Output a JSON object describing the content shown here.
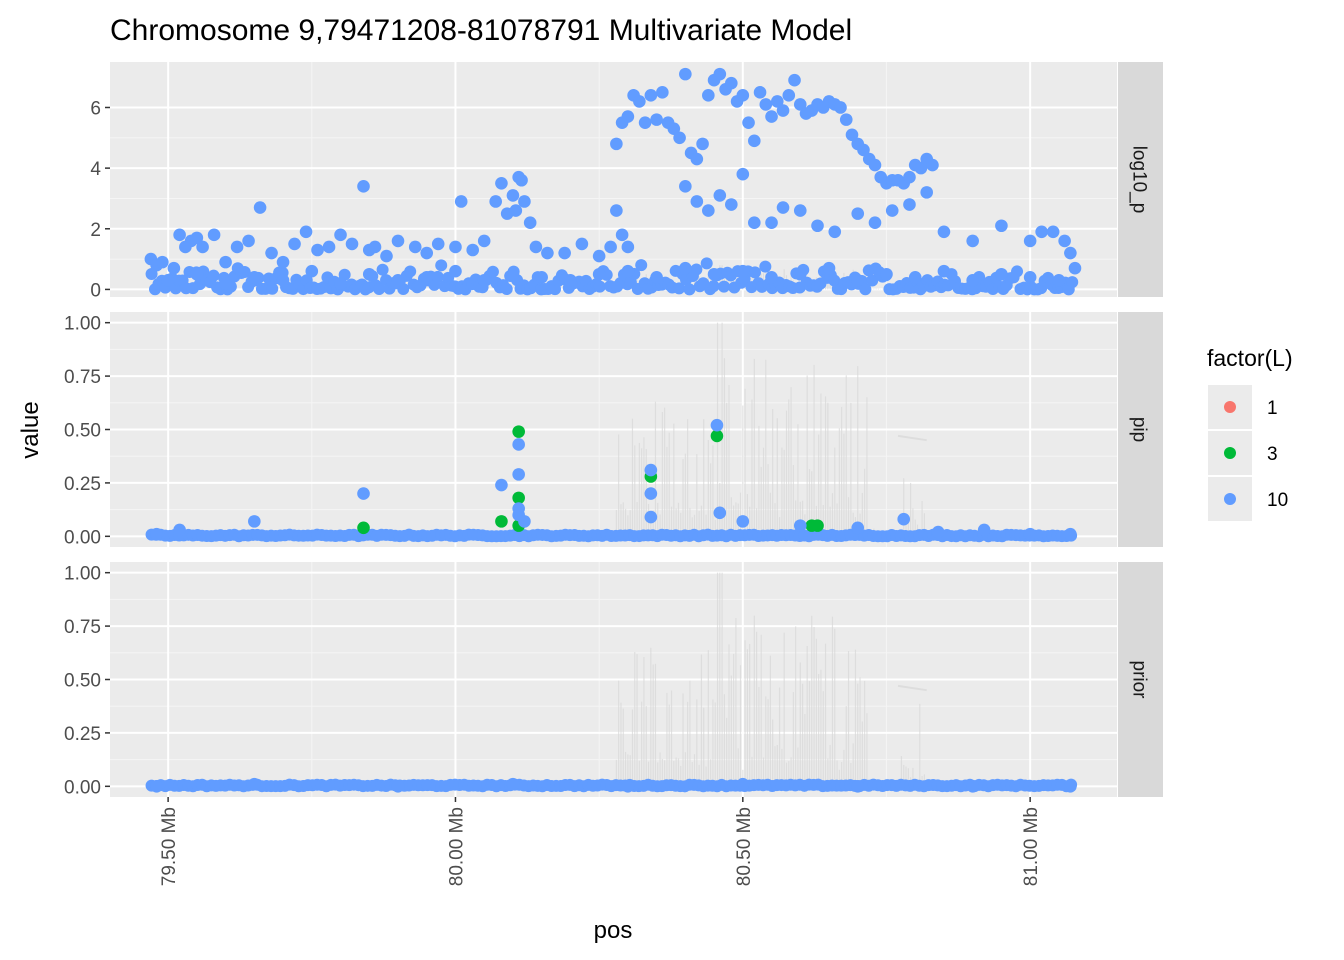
{
  "chart_data": {
    "type": "scatter",
    "title": "Chromosome 9,79471208-81078791 Multivariate Model",
    "xlabel": "pos",
    "ylabel": "value",
    "x_unit": "Mb",
    "x_range": [
      79.471208,
      81.078791
    ],
    "x_ticks": [
      "79.50 Mb",
      "80.00 Mb",
      "80.50 Mb",
      "81.00 Mb"
    ],
    "x_tick_values": [
      79.5,
      80.0,
      80.5,
      81.0
    ],
    "legend": {
      "title": "factor(L)",
      "placement": "right",
      "entries": [
        {
          "label": "1",
          "color": "#F8766D"
        },
        {
          "label": "3",
          "color": "#00BA38"
        },
        {
          "label": "10",
          "color": "#619CFF"
        }
      ]
    },
    "background_line_color": "#d9d9d9",
    "panels": [
      {
        "strip": "log10_p",
        "ylim": [
          -0.25,
          7.5
        ],
        "y_ticks": [
          "0",
          "2",
          "4",
          "6"
        ],
        "y_tick_values": [
          0,
          2,
          4,
          6
        ],
        "series": [
          {
            "label": "10",
            "points": [
              [
                79.47,
                1.0
              ],
              [
                79.48,
                0.8
              ],
              [
                79.49,
                0.9
              ],
              [
                79.51,
                0.7
              ],
              [
                79.52,
                1.8
              ],
              [
                79.53,
                1.4
              ],
              [
                79.54,
                1.6
              ],
              [
                79.55,
                1.7
              ],
              [
                79.56,
                1.4
              ],
              [
                79.58,
                1.8
              ],
              [
                79.6,
                0.9
              ],
              [
                79.62,
                1.4
              ],
              [
                79.64,
                1.6
              ],
              [
                79.66,
                2.7
              ],
              [
                79.68,
                1.2
              ],
              [
                79.7,
                0.9
              ],
              [
                79.72,
                1.5
              ],
              [
                79.74,
                1.9
              ],
              [
                79.76,
                1.3
              ],
              [
                79.78,
                1.4
              ],
              [
                79.8,
                1.8
              ],
              [
                79.82,
                1.5
              ],
              [
                79.84,
                3.4
              ],
              [
                79.85,
                1.3
              ],
              [
                79.86,
                1.4
              ],
              [
                79.88,
                1.1
              ],
              [
                79.9,
                1.6
              ],
              [
                79.93,
                1.4
              ],
              [
                79.95,
                1.2
              ],
              [
                79.97,
                1.5
              ],
              [
                80.0,
                1.4
              ],
              [
                80.01,
                2.9
              ],
              [
                80.03,
                1.3
              ],
              [
                80.05,
                1.6
              ],
              [
                80.07,
                2.9
              ],
              [
                80.08,
                3.5
              ],
              [
                80.09,
                2.5
              ],
              [
                80.1,
                3.1
              ],
              [
                80.105,
                2.6
              ],
              [
                80.11,
                3.7
              ],
              [
                80.115,
                3.6
              ],
              [
                80.12,
                2.9
              ],
              [
                80.13,
                2.2
              ],
              [
                80.14,
                1.4
              ],
              [
                80.16,
                1.2
              ],
              [
                80.19,
                1.2
              ],
              [
                80.22,
                1.5
              ],
              [
                80.25,
                1.1
              ],
              [
                80.27,
                1.4
              ],
              [
                80.28,
                2.6
              ],
              [
                80.29,
                1.8
              ],
              [
                80.3,
                1.4
              ],
              [
                80.28,
                4.8
              ],
              [
                80.29,
                5.5
              ],
              [
                80.3,
                5.7
              ],
              [
                80.31,
                6.4
              ],
              [
                80.32,
                6.2
              ],
              [
                80.33,
                5.5
              ],
              [
                80.34,
                6.4
              ],
              [
                80.35,
                5.6
              ],
              [
                80.36,
                6.5
              ],
              [
                80.37,
                5.5
              ],
              [
                80.38,
                5.3
              ],
              [
                80.39,
                5.0
              ],
              [
                80.4,
                7.1
              ],
              [
                80.41,
                4.5
              ],
              [
                80.42,
                4.3
              ],
              [
                80.43,
                4.8
              ],
              [
                80.44,
                6.4
              ],
              [
                80.45,
                6.9
              ],
              [
                80.46,
                7.1
              ],
              [
                80.47,
                6.6
              ],
              [
                80.48,
                6.8
              ],
              [
                80.49,
                6.2
              ],
              [
                80.5,
                6.4
              ],
              [
                80.51,
                5.5
              ],
              [
                80.52,
                4.9
              ],
              [
                80.53,
                6.5
              ],
              [
                80.54,
                6.1
              ],
              [
                80.55,
                5.7
              ],
              [
                80.56,
                6.2
              ],
              [
                80.57,
                5.9
              ],
              [
                80.58,
                6.4
              ],
              [
                80.59,
                6.9
              ],
              [
                80.6,
                6.1
              ],
              [
                80.61,
                5.8
              ],
              [
                80.62,
                5.9
              ],
              [
                80.63,
                6.1
              ],
              [
                80.64,
                6.0
              ],
              [
                80.65,
                6.2
              ],
              [
                80.66,
                6.1
              ],
              [
                80.67,
                6.0
              ],
              [
                80.68,
                5.6
              ],
              [
                80.69,
                5.1
              ],
              [
                80.7,
                4.8
              ],
              [
                80.71,
                4.6
              ],
              [
                80.72,
                4.3
              ],
              [
                80.73,
                4.1
              ],
              [
                80.74,
                3.7
              ],
              [
                80.75,
                3.5
              ],
              [
                80.76,
                3.6
              ],
              [
                80.77,
                3.6
              ],
              [
                80.78,
                3.5
              ],
              [
                80.79,
                3.7
              ],
              [
                80.8,
                4.1
              ],
              [
                80.81,
                4.0
              ],
              [
                80.82,
                4.3
              ],
              [
                80.83,
                4.1
              ],
              [
                80.4,
                3.4
              ],
              [
                80.42,
                2.9
              ],
              [
                80.44,
                2.6
              ],
              [
                80.46,
                3.1
              ],
              [
                80.48,
                2.8
              ],
              [
                80.5,
                3.8
              ],
              [
                80.52,
                2.2
              ],
              [
                80.55,
                2.2
              ],
              [
                80.57,
                2.7
              ],
              [
                80.6,
                2.6
              ],
              [
                80.63,
                2.1
              ],
              [
                80.66,
                1.9
              ],
              [
                80.7,
                2.5
              ],
              [
                80.73,
                2.2
              ],
              [
                80.76,
                2.6
              ],
              [
                80.79,
                2.8
              ],
              [
                80.82,
                3.2
              ],
              [
                80.85,
                1.9
              ],
              [
                80.9,
                1.6
              ],
              [
                80.95,
                2.1
              ],
              [
                81.0,
                1.6
              ],
              [
                81.02,
                1.9
              ],
              [
                81.04,
                1.9
              ],
              [
                81.06,
                1.6
              ],
              [
                81.07,
                1.2
              ],
              [
                81.078,
                0.7
              ],
              [
                79.5,
                0.3
              ],
              [
                79.55,
                0.5
              ],
              [
                79.6,
                0.2
              ],
              [
                79.65,
                0.4
              ],
              [
                79.7,
                0.3
              ],
              [
                79.75,
                0.6
              ],
              [
                79.8,
                0.2
              ],
              [
                79.85,
                0.5
              ],
              [
                79.9,
                0.3
              ],
              [
                79.95,
                0.4
              ],
              [
                80.0,
                0.6
              ],
              [
                80.05,
                0.3
              ],
              [
                80.1,
                0.5
              ],
              [
                80.15,
                0.4
              ],
              [
                80.2,
                0.3
              ],
              [
                80.25,
                0.5
              ],
              [
                80.3,
                0.6
              ],
              [
                80.35,
                0.4
              ],
              [
                80.4,
                0.7
              ],
              [
                80.45,
                0.5
              ],
              [
                80.5,
                0.6
              ],
              [
                80.55,
                0.4
              ],
              [
                80.6,
                0.5
              ],
              [
                80.65,
                0.7
              ],
              [
                80.7,
                0.3
              ],
              [
                80.75,
                0.5
              ],
              [
                80.8,
                0.4
              ],
              [
                80.85,
                0.6
              ],
              [
                80.9,
                0.3
              ],
              [
                80.95,
                0.5
              ],
              [
                81.0,
                0.4
              ],
              [
                81.05,
                0.3
              ]
            ]
          }
        ]
      },
      {
        "strip": "pip",
        "ylim": [
          -0.05,
          1.05
        ],
        "y_ticks": [
          "0.00",
          "0.25",
          "0.50",
          "0.75",
          "1.00"
        ],
        "y_tick_values": [
          0,
          0.25,
          0.5,
          0.75,
          1.0
        ],
        "series": [
          {
            "label": "3",
            "points": [
              [
                79.84,
                0.04
              ],
              [
                80.08,
                0.07
              ],
              [
                80.11,
                0.49
              ],
              [
                80.11,
                0.18
              ],
              [
                80.11,
                0.05
              ],
              [
                80.34,
                0.28
              ],
              [
                80.455,
                0.47
              ],
              [
                80.62,
                0.05
              ],
              [
                80.63,
                0.05
              ]
            ]
          },
          {
            "label": "10",
            "points": [
              [
                79.48,
                0.01
              ],
              [
                79.52,
                0.03
              ],
              [
                79.65,
                0.07
              ],
              [
                79.84,
                0.2
              ],
              [
                80.08,
                0.24
              ],
              [
                80.11,
                0.43
              ],
              [
                80.11,
                0.29
              ],
              [
                80.11,
                0.13
              ],
              [
                80.11,
                0.1
              ],
              [
                80.12,
                0.07
              ],
              [
                80.34,
                0.31
              ],
              [
                80.34,
                0.2
              ],
              [
                80.34,
                0.09
              ],
              [
                80.455,
                0.52
              ],
              [
                80.46,
                0.11
              ],
              [
                80.5,
                0.07
              ],
              [
                80.6,
                0.05
              ],
              [
                80.7,
                0.04
              ],
              [
                80.78,
                0.08
              ],
              [
                80.84,
                0.02
              ],
              [
                80.92,
                0.03
              ],
              [
                81.0,
                0.01
              ],
              [
                81.07,
                0.01
              ]
            ]
          }
        ]
      },
      {
        "strip": "prior",
        "ylim": [
          -0.05,
          1.05
        ],
        "y_ticks": [
          "0.00",
          "0.25",
          "0.50",
          "0.75",
          "1.00"
        ],
        "y_tick_values": [
          0,
          0.25,
          0.5,
          0.75,
          1.0
        ],
        "series": [
          {
            "label": "10",
            "points": [
              [
                79.48,
                0.0
              ],
              [
                79.65,
                0.01
              ],
              [
                79.9,
                0.0
              ],
              [
                80.1,
                0.01
              ],
              [
                80.3,
                0.0
              ],
              [
                80.5,
                0.01
              ],
              [
                80.7,
                0.0
              ],
              [
                80.9,
                0.0
              ],
              [
                81.07,
                0.0
              ]
            ]
          }
        ]
      }
    ]
  }
}
